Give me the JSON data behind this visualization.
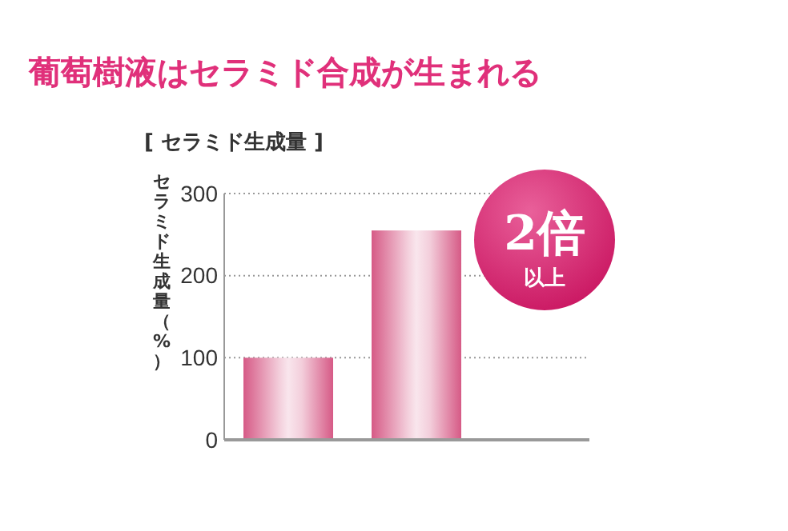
{
  "chart_data": {
    "type": "bar",
    "title": "葡萄樹液はセラミド合成が生まれる",
    "subtitle": "[ セラミド生成量 ]",
    "ylabel": "セラミド生成量（%）",
    "categories": [
      null,
      null
    ],
    "values": [
      100,
      255
    ],
    "color": "#d65a86",
    "ylim": [
      0,
      300
    ],
    "yticks": [
      0,
      100,
      200,
      300
    ],
    "grid": "y",
    "annotations": [
      "2倍",
      "以上"
    ]
  }
}
